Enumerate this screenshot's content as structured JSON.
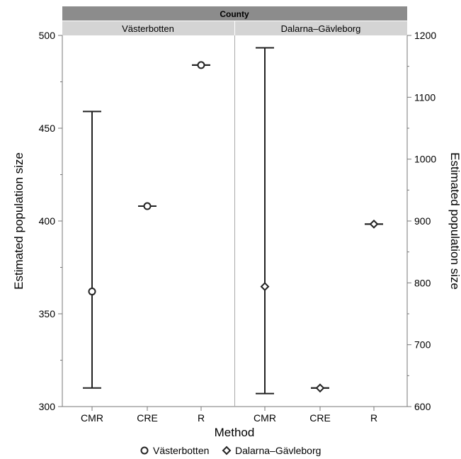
{
  "chart_data": {
    "type": "scatter",
    "facet_header": "County",
    "xlabel": "Method",
    "categories": [
      "CMR",
      "CRE",
      "R"
    ],
    "panels": [
      {
        "name": "Västerbotten",
        "axis": "left",
        "ylabel": "Estimated population size",
        "ylim": [
          300,
          500
        ],
        "ticks": [
          300,
          350,
          400,
          450,
          500
        ],
        "marker": "circle",
        "points": [
          {
            "x": "CMR",
            "y": 362,
            "low": 310,
            "high": 459
          },
          {
            "x": "CRE",
            "y": 408,
            "low": 408,
            "high": 408
          },
          {
            "x": "R",
            "y": 484,
            "low": 484,
            "high": 484
          }
        ]
      },
      {
        "name": "Dalarna–Gävleborg",
        "axis": "right",
        "ylabel": "Estimated population size",
        "ylim": [
          600,
          1200
        ],
        "ticks": [
          600,
          700,
          800,
          900,
          1000,
          1100,
          1200
        ],
        "marker": "diamond",
        "points": [
          {
            "x": "CMR",
            "y": 794,
            "low": 621,
            "high": 1180
          },
          {
            "x": "CRE",
            "y": 630,
            "low": 630,
            "high": 630
          },
          {
            "x": "R",
            "y": 895,
            "low": 895,
            "high": 895
          }
        ]
      }
    ],
    "legend": {
      "placement": "bottom",
      "entries": [
        {
          "label": "Västerbotten",
          "marker": "circle"
        },
        {
          "label": "Dalarna–Gävleborg",
          "marker": "diamond"
        }
      ]
    }
  }
}
